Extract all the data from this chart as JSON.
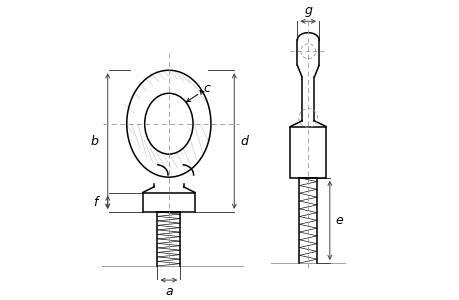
{
  "bg_color": "#ffffff",
  "line_color": "#000000",
  "dim_color": "#444444",
  "dash_color": "#999999",
  "labels": [
    "a",
    "b",
    "c",
    "d",
    "e",
    "f",
    "g"
  ],
  "lw_main": 1.1,
  "lw_dim": 0.7,
  "lw_thin": 0.6,
  "fs": 9
}
